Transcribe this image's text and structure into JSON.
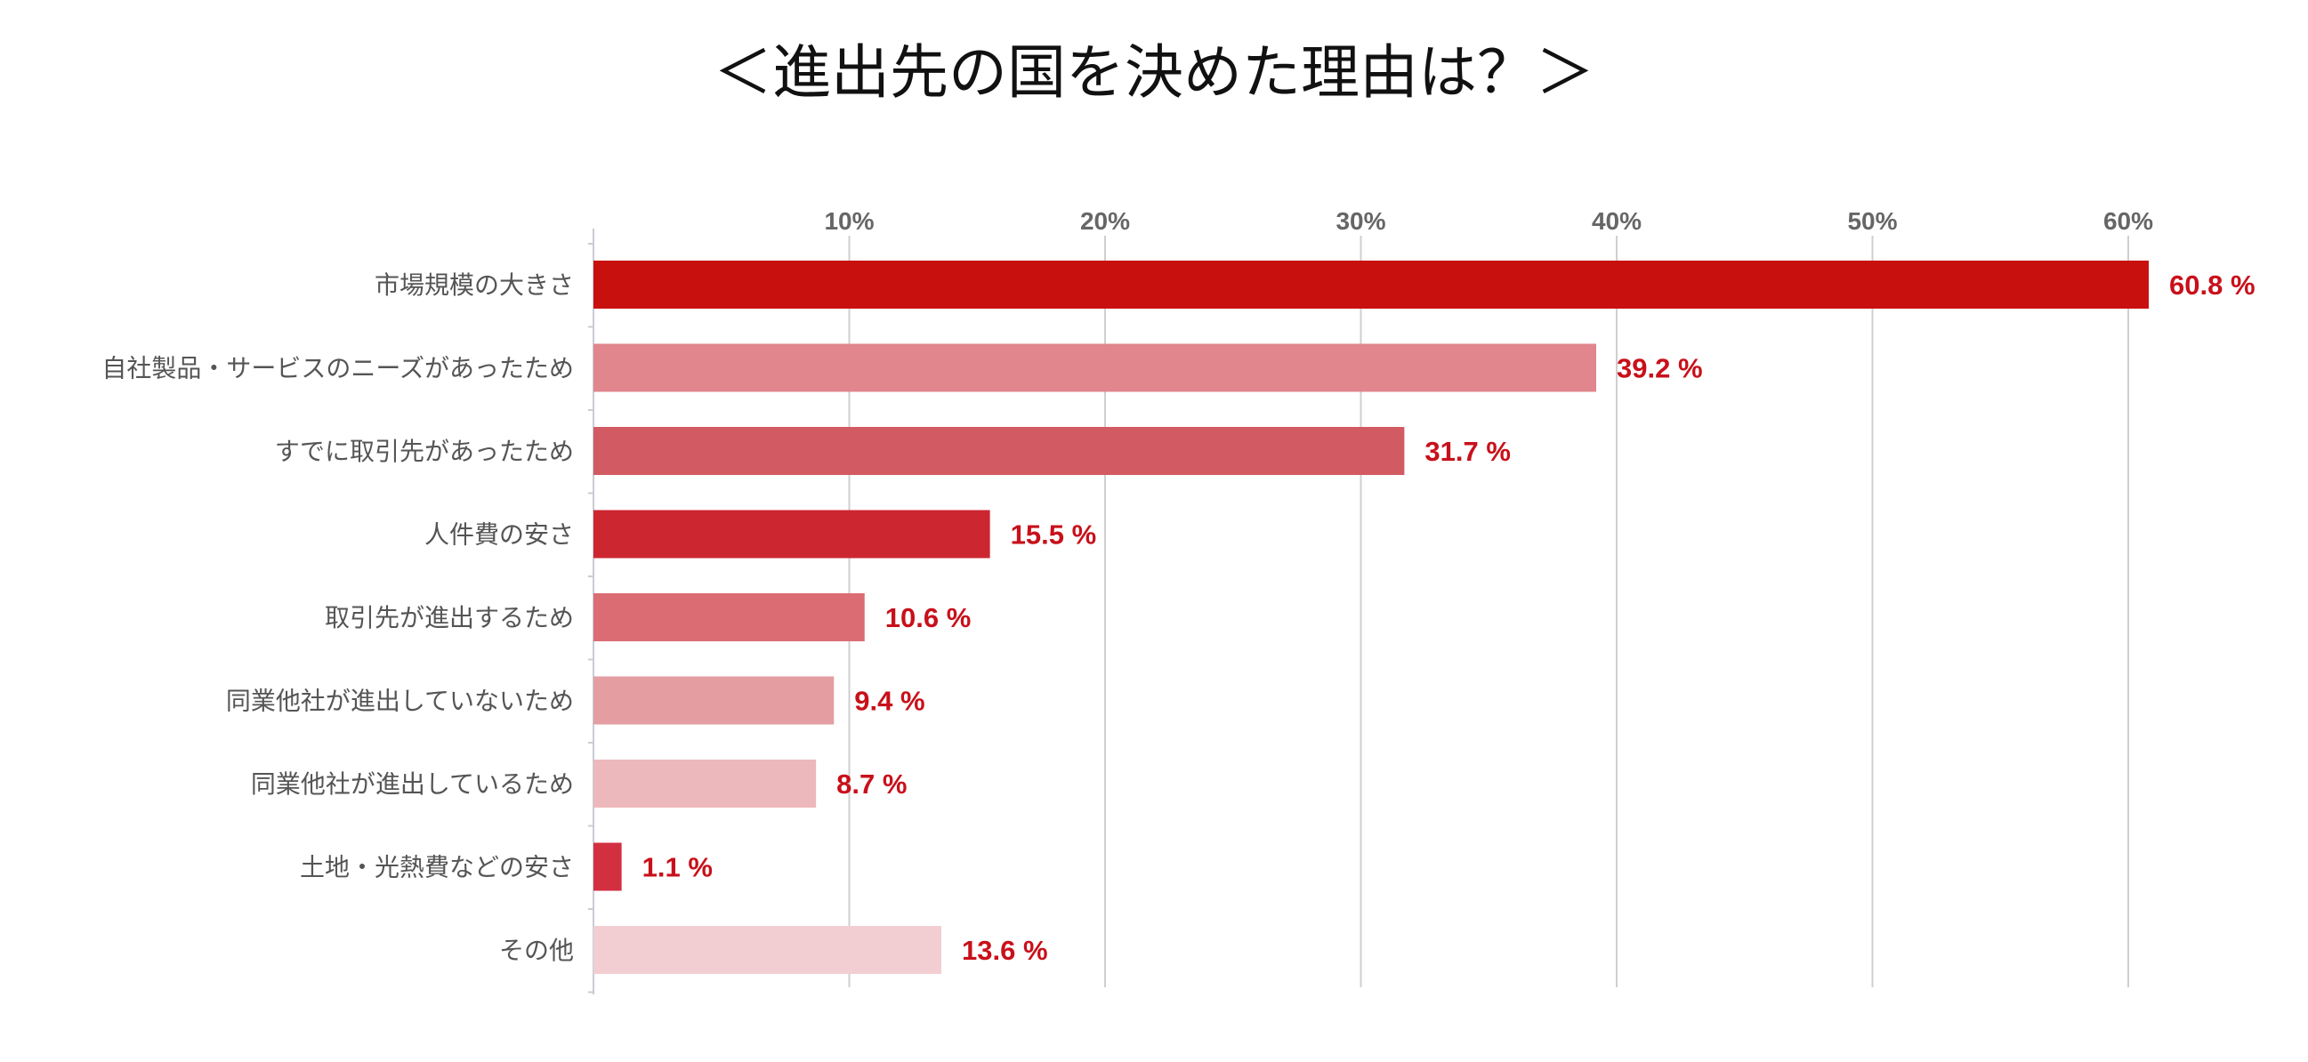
{
  "chart_data": {
    "type": "bar",
    "orientation": "horizontal",
    "title": "＜進出先の国を決めた理由は？＞",
    "categories": [
      "市場規模の大きさ",
      "自社製品・サービスのニーズがあったため",
      "すでに取引先があったため",
      "人件費の安さ",
      "取引先が進出するため",
      "同業他社が進出していないため",
      "同業他社が進出しているため",
      "土地・光熱費などの安さ",
      "その他"
    ],
    "values": [
      60.8,
      39.2,
      31.7,
      15.5,
      10.6,
      9.4,
      8.7,
      1.1,
      13.6
    ],
    "value_labels": [
      "60.8 %",
      "39.2 %",
      "31.7 %",
      "15.5 %",
      "10.6 %",
      "9.4 %",
      "8.7 %",
      "1.1 %",
      "13.6 %"
    ],
    "colors": [
      "#c8100f",
      "#e0868c",
      "#d25a62",
      "#cc2630",
      "#dc6c74",
      "#e49ea2",
      "#edb8bc",
      "#d23040",
      "#f2ced2"
    ],
    "xlim": [
      0,
      63
    ],
    "x_ticks": [
      10,
      20,
      30,
      40,
      50,
      60
    ],
    "x_tick_labels": [
      "10%",
      "20%",
      "30%",
      "40%",
      "50%",
      "60%"
    ],
    "xlabel": "",
    "ylabel": "",
    "grid": true,
    "legend": "none"
  }
}
